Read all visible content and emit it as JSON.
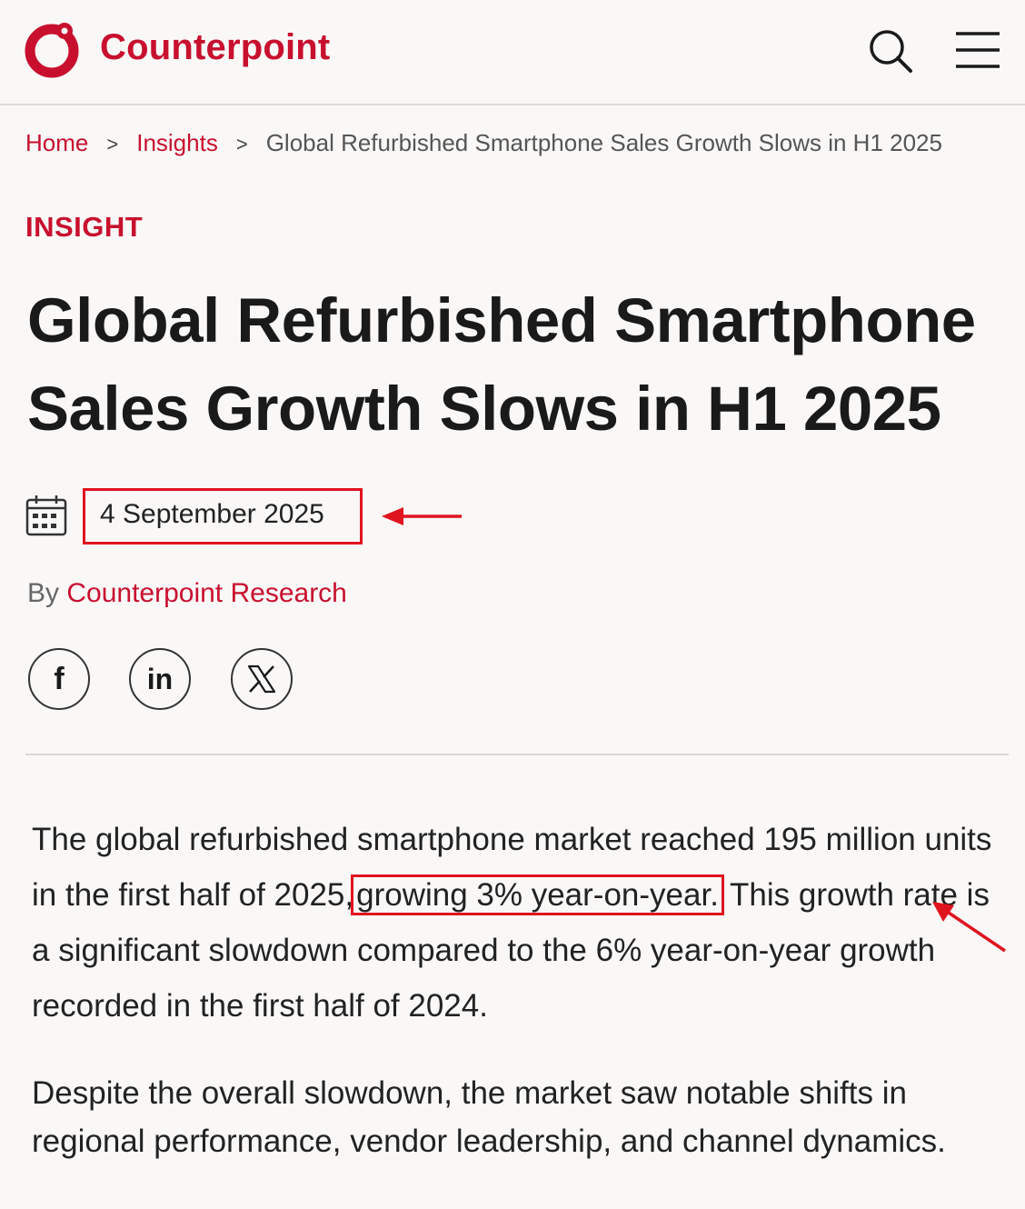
{
  "header": {
    "brand": "Counterpoint",
    "logo_icon": "counterpoint-logo-icon",
    "search_icon": "search-icon",
    "menu_icon": "hamburger-menu-icon",
    "brand_color": "#c8102e"
  },
  "breadcrumb": {
    "home": "Home",
    "insights": "Insights",
    "separator": ">",
    "current": "Global Refurbished Smartphone Sales Growth Slows in H1 2025"
  },
  "article": {
    "kicker": "INSIGHT",
    "title": "Global Refurbished Smartphone Sales Growth Slows in H1 2025",
    "date": "4 September 2025",
    "byline_prefix": "By",
    "author": "Counterpoint Research",
    "share": {
      "facebook": "f",
      "linkedin": "in",
      "x": "𝕏"
    },
    "para1_before": "The global refurbished smartphone market reached 195 million units in the first half of 2025,",
    "para1_highlight": "growing 3% year-on-year.",
    "para1_after": "This growth rate is a significant slowdown compared to the 6% year-on-year growth recorded in the first half of 2024.",
    "para2": "Despite the overall slowdown, the market saw notable shifts in regional performance, vendor leadership, and channel dynamics."
  },
  "annotation_color": "#e0141e"
}
